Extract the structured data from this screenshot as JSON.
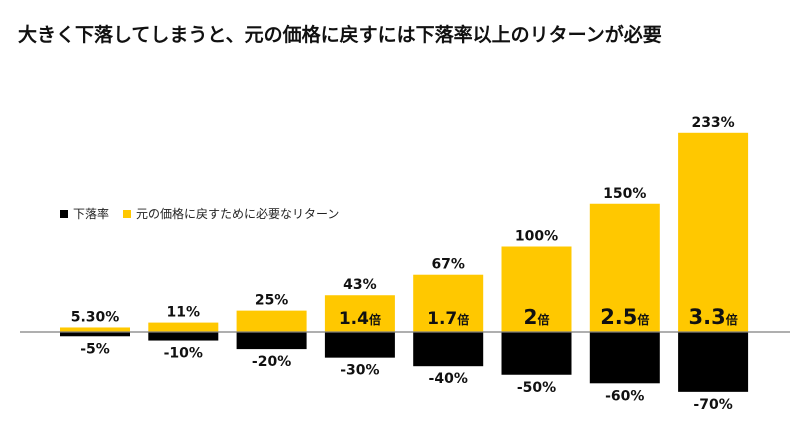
{
  "title": "大きく下落してしまうと、元の価格に戻すには下落率以上のリターンが必要",
  "legend": {
    "decline": "下落率",
    "required": "元の価格に戻すために必要なリターン"
  },
  "colors": {
    "decline": "#000000",
    "required": "#FFC800",
    "axis": "#7f7f7f"
  },
  "chart_data": {
    "type": "bar",
    "categories": [
      "",
      "",
      "",
      "",
      "",
      "",
      "",
      ""
    ],
    "series": [
      {
        "name": "下落率",
        "values": [
          -5,
          -10,
          -20,
          -30,
          -40,
          -50,
          -60,
          -70
        ],
        "labels": [
          "-5%",
          "-10%",
          "-20%",
          "-30%",
          "-40%",
          "-50%",
          "-60%",
          "-70%"
        ]
      },
      {
        "name": "元の価格に戻すために必要なリターン",
        "values": [
          5.3,
          11,
          25,
          43,
          67,
          100,
          150,
          233
        ],
        "labels": [
          "5.30%",
          "11%",
          "25%",
          "43%",
          "67%",
          "100%",
          "150%",
          "233%"
        ]
      }
    ],
    "multipliers": [
      "",
      "",
      "",
      "1.4倍",
      "1.7倍",
      "2倍",
      "2.5倍",
      "3.3倍"
    ],
    "legend_position": "left",
    "grid": false
  }
}
